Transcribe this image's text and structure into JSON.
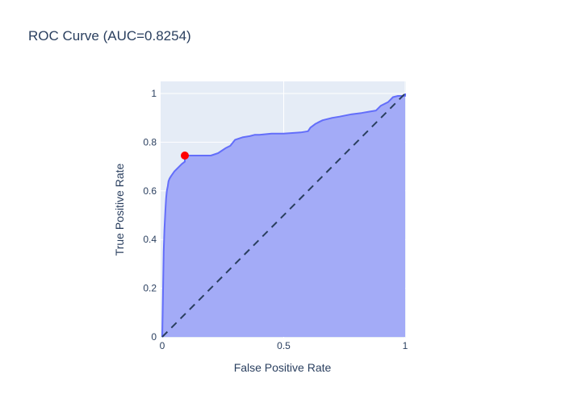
{
  "chart_data": {
    "type": "area",
    "title": "ROC Curve (AUC=0.8254)",
    "xlabel": "False Positive Rate",
    "ylabel": "True Positive Rate",
    "xlim": [
      0,
      1
    ],
    "ylim": [
      0,
      1
    ],
    "x_ticks": [
      "0",
      "0.5",
      "1"
    ],
    "y_ticks": [
      "0",
      "0.2",
      "0.4",
      "0.6",
      "0.8",
      "1"
    ],
    "grid": true,
    "legend": false,
    "colors": {
      "plot_background": "#e5ecf6",
      "gridline": "#ffffff",
      "fill": "#a3abf7",
      "line": "#636efa",
      "diagonal": "#2a3f5f",
      "marker": "#ff0000",
      "text": "#2a3f5f"
    },
    "series": [
      {
        "kind": "roc_curve",
        "x": [
          0,
          0.003,
          0.006,
          0.009,
          0.013,
          0.016,
          0.019,
          0.023,
          0.026,
          0.03,
          0.036,
          0.043,
          0.05,
          0.06,
          0.07,
          0.08,
          0.093,
          0.093,
          0.1,
          0.2,
          0.23,
          0.245,
          0.26,
          0.28,
          0.3,
          0.33,
          0.36,
          0.38,
          0.4,
          0.45,
          0.5,
          0.57,
          0.6,
          0.61,
          0.63,
          0.64,
          0.65,
          0.66,
          0.68,
          0.7,
          0.73,
          0.78,
          0.82,
          0.85,
          0.88,
          0.9,
          0.91,
          0.93,
          0.94,
          0.95,
          0.97,
          1,
          1
        ],
        "y": [
          0,
          0.17,
          0.35,
          0.44,
          0.52,
          0.57,
          0.6,
          0.62,
          0.64,
          0.65,
          0.66,
          0.67,
          0.68,
          0.69,
          0.7,
          0.71,
          0.72,
          0.745,
          0.745,
          0.745,
          0.755,
          0.765,
          0.775,
          0.785,
          0.81,
          0.82,
          0.825,
          0.83,
          0.83,
          0.835,
          0.835,
          0.84,
          0.845,
          0.86,
          0.875,
          0.88,
          0.885,
          0.89,
          0.895,
          0.9,
          0.905,
          0.915,
          0.92,
          0.925,
          0.93,
          0.95,
          0.955,
          0.965,
          0.975,
          0.985,
          0.99,
          0.99,
          1
        ]
      },
      {
        "kind": "chance_line",
        "x": [
          0,
          1
        ],
        "y": [
          0,
          1
        ]
      }
    ],
    "optimal_point": {
      "x": 0.093,
      "y": 0.745
    }
  }
}
